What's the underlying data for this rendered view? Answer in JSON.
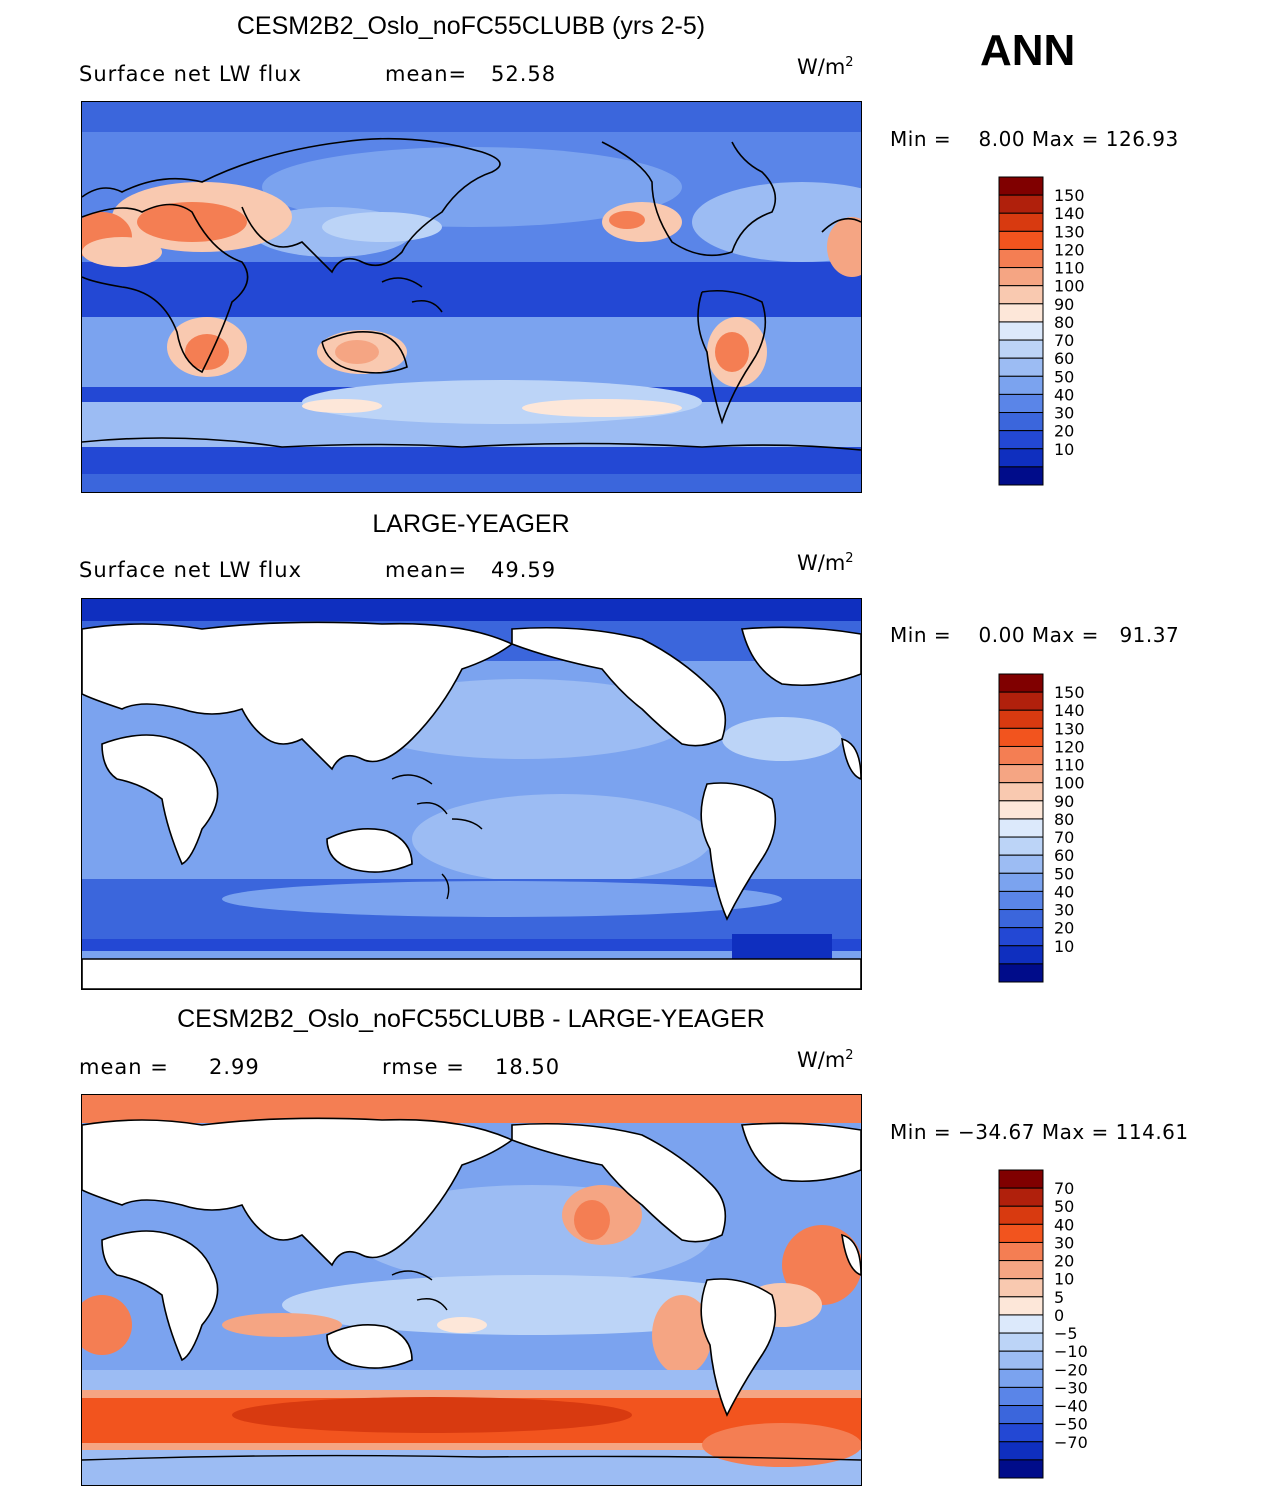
{
  "season": "ANN",
  "units": {
    "base": "W/m",
    "exp": "2"
  },
  "panels": [
    {
      "title": "CESM2B2_Oslo_noFC55CLUBB (yrs 2-5)",
      "left_label": "Surface net LW flux",
      "stat1_label": "mean=",
      "stat1_value": "52.58",
      "stat2_label": "",
      "stat2_value": "",
      "min_max": "Min =    8.00 Max = 126.93",
      "type": "model"
    },
    {
      "title": "LARGE-YEAGER",
      "left_label": "Surface net LW flux",
      "stat1_label": "mean=",
      "stat1_value": "49.59",
      "stat2_label": "",
      "stat2_value": "",
      "min_max": "Min =    0.00 Max =   91.37",
      "type": "obs"
    },
    {
      "title": "CESM2B2_Oslo_noFC55CLUBB - LARGE-YEAGER",
      "left_label": "mean =",
      "stat1_label": "",
      "stat1_value": "2.99",
      "stat2_label": "rmse =",
      "stat2_value": "18.50",
      "min_max": "Min = −34.67 Max = 114.61",
      "type": "diff"
    }
  ],
  "colorbar_abs": {
    "labels": [
      "150",
      "140",
      "130",
      "120",
      "110",
      "100",
      "90",
      "80",
      "70",
      "60",
      "50",
      "40",
      "30",
      "20",
      "10"
    ],
    "colors": [
      "#800000",
      "#b0200c",
      "#d83a10",
      "#f2541e",
      "#f47e53",
      "#f5a583",
      "#f9c9b0",
      "#fde7d9",
      "#dce9fb",
      "#bcd4f7",
      "#9cbcf3",
      "#7ba3ef",
      "#5a85e8",
      "#3b66dc",
      "#2348d4",
      "#0f2fbf",
      "#000c8a"
    ]
  },
  "colorbar_diff": {
    "labels": [
      "70",
      "50",
      "40",
      "30",
      "20",
      "10",
      "5",
      "0",
      "−5",
      "−10",
      "−20",
      "−30",
      "−40",
      "−50",
      "−70"
    ],
    "colors": [
      "#800000",
      "#b0200c",
      "#d83a10",
      "#f2541e",
      "#f47e53",
      "#f5a583",
      "#f9c9b0",
      "#fde7d9",
      "#dce9fb",
      "#bcd4f7",
      "#9cbcf3",
      "#7ba3ef",
      "#5a85e8",
      "#3b66dc",
      "#2348d4",
      "#0f2fbf",
      "#000c8a"
    ]
  }
}
